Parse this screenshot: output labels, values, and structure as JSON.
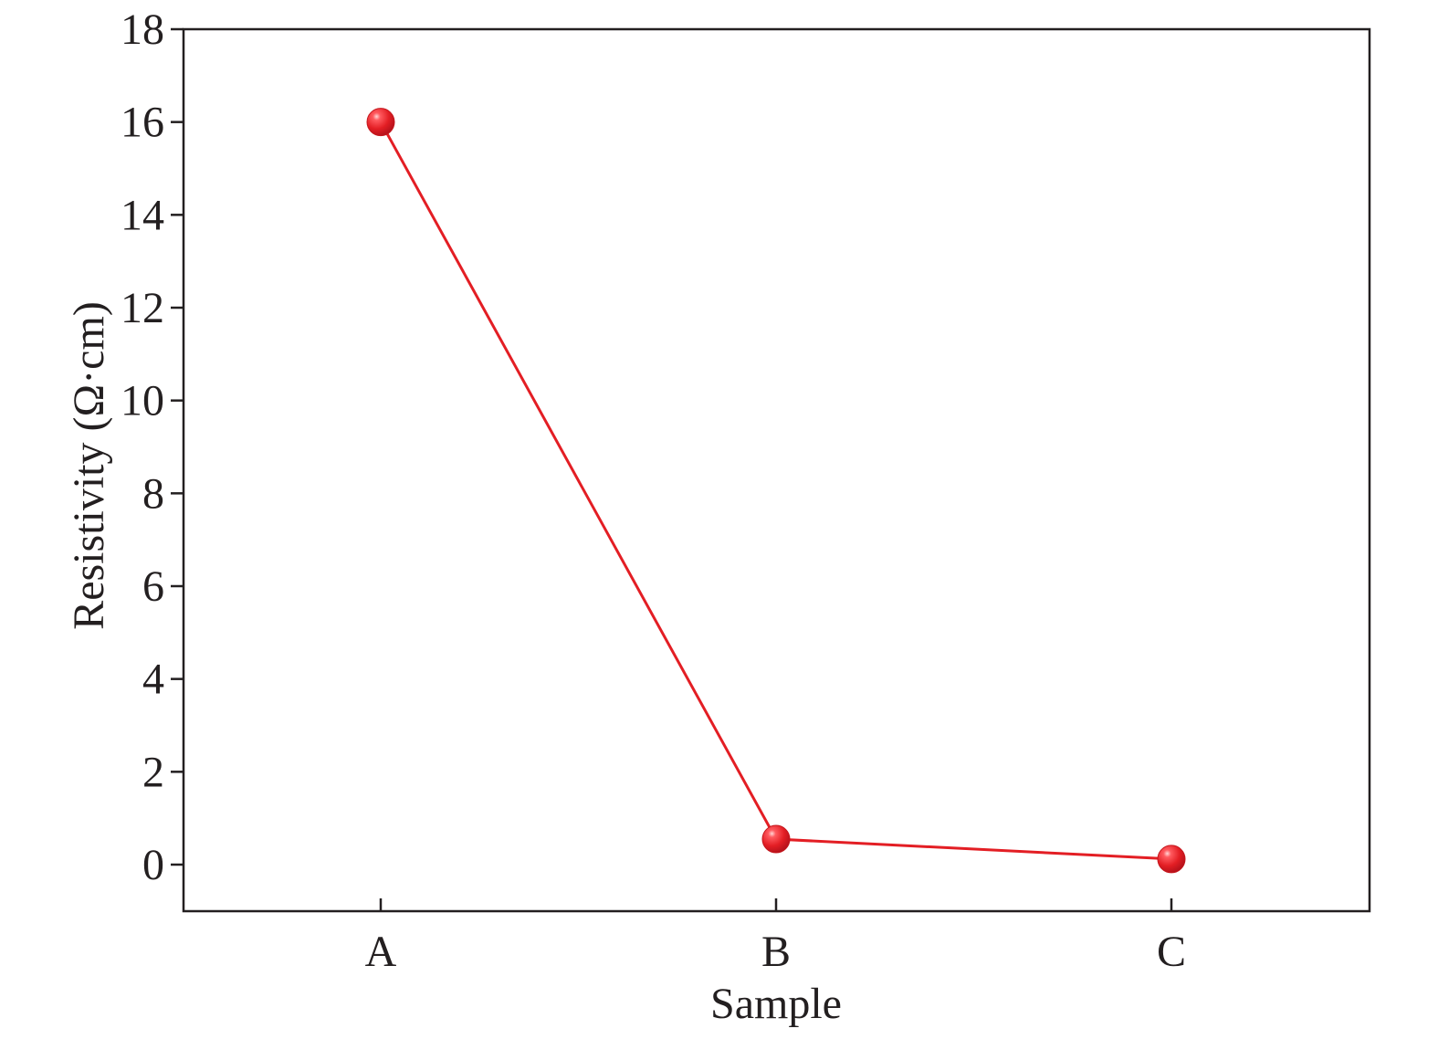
{
  "chart_data": {
    "type": "line",
    "xlabel": "Sample",
    "ylabel": "Resistivity (Ω·cm)",
    "categories": [
      "A",
      "B",
      "C"
    ],
    "series": [
      {
        "values": [
          16.0,
          0.55,
          0.12
        ],
        "color": "#e31e24"
      }
    ],
    "ylim": [
      -1,
      18
    ],
    "yticks": [
      0,
      2,
      4,
      6,
      8,
      10,
      12,
      14,
      16,
      18
    ],
    "grid": false,
    "legend": "none"
  }
}
